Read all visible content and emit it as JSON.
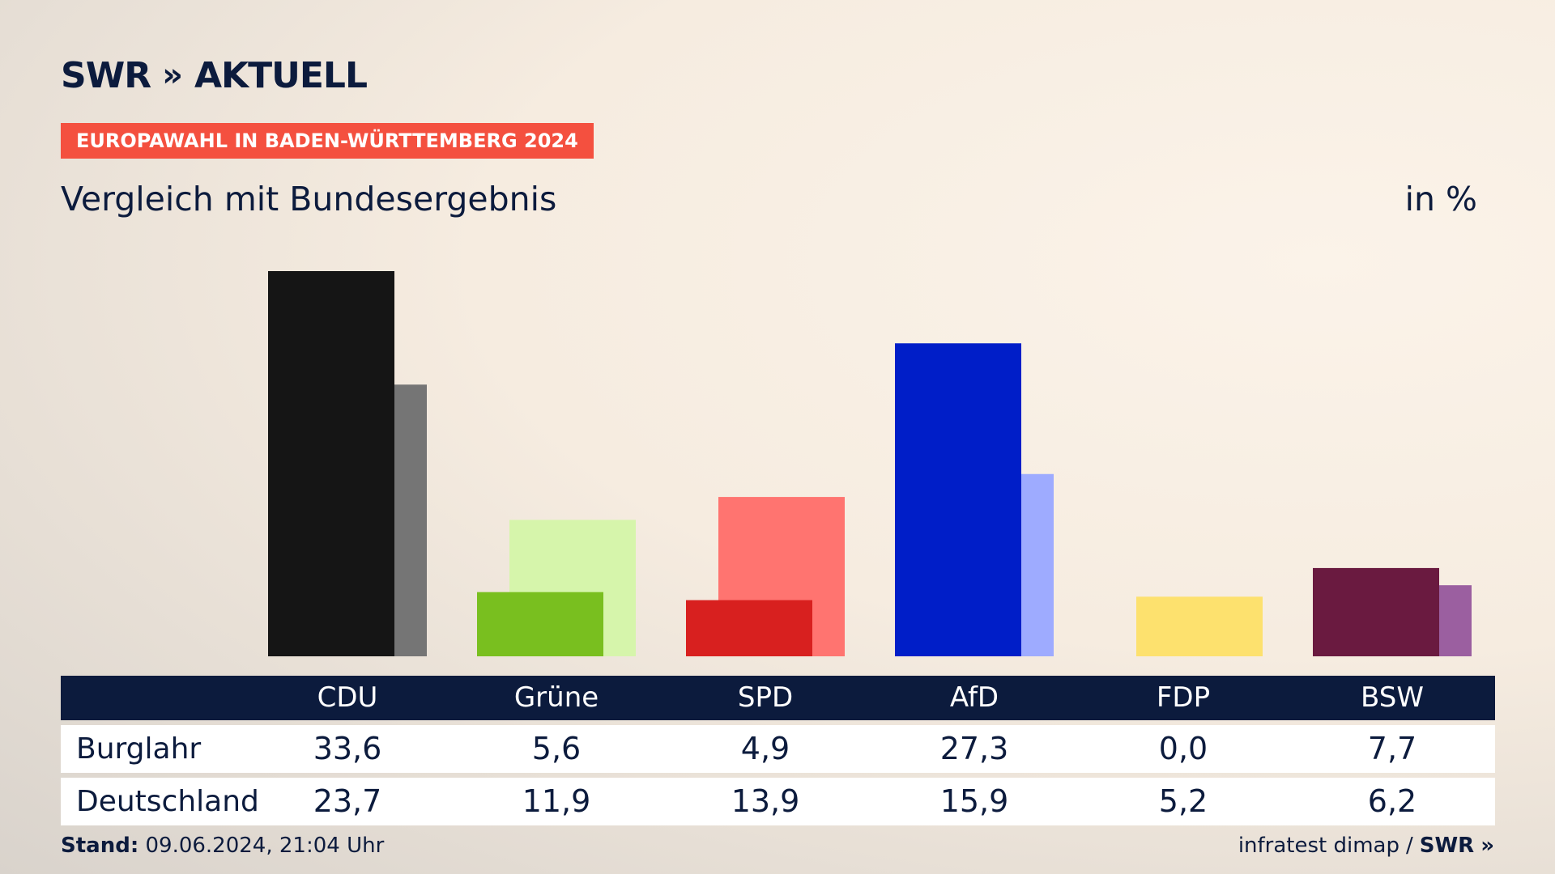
{
  "brand": {
    "name": "SWR",
    "chevrons": "»",
    "section": "AKTUELL"
  },
  "tag": "EUROPAWAHL IN BADEN-WÜRTTEMBERG 2024",
  "subtitle": "Vergleich mit Bundesergebnis",
  "unit": "in %",
  "table": {
    "rows": [
      {
        "label": "Burglahr"
      },
      {
        "label": "Deutschland"
      }
    ]
  },
  "footer": {
    "stand_label": "Stand:",
    "stand_value": "09.06.2024, 21:04 Uhr",
    "source": "infratest dimap",
    "separator": "/",
    "source_brand": "SWR",
    "source_chevrons": "»"
  },
  "chart_data": {
    "type": "bar",
    "categories": [
      "CDU",
      "Grüne",
      "SPD",
      "AfD",
      "FDP",
      "BSW"
    ],
    "series": [
      {
        "name": "Burglahr",
        "values": [
          33.6,
          5.6,
          4.9,
          27.3,
          0.0,
          7.7
        ],
        "value_labels": [
          "33,6",
          "5,6",
          "4,9",
          "27,3",
          "0,0",
          "7,7"
        ],
        "colors": [
          "#151515",
          "#79bf1f",
          "#d8201f",
          "#001ec8",
          "#fde16e",
          "#6a1a40"
        ]
      },
      {
        "name": "Deutschland",
        "values": [
          23.7,
          11.9,
          13.9,
          15.9,
          5.2,
          6.2
        ],
        "value_labels": [
          "23,7",
          "11,9",
          "13,9",
          "15,9",
          "5,2",
          "6,2"
        ],
        "colors": [
          "#757575",
          "#d6f5ab",
          "#ff7470",
          "#9eabff",
          "#fde16e",
          "#9b5fa0"
        ]
      }
    ],
    "ylim": [
      0,
      33.6
    ],
    "grid": false,
    "legend": "none"
  }
}
